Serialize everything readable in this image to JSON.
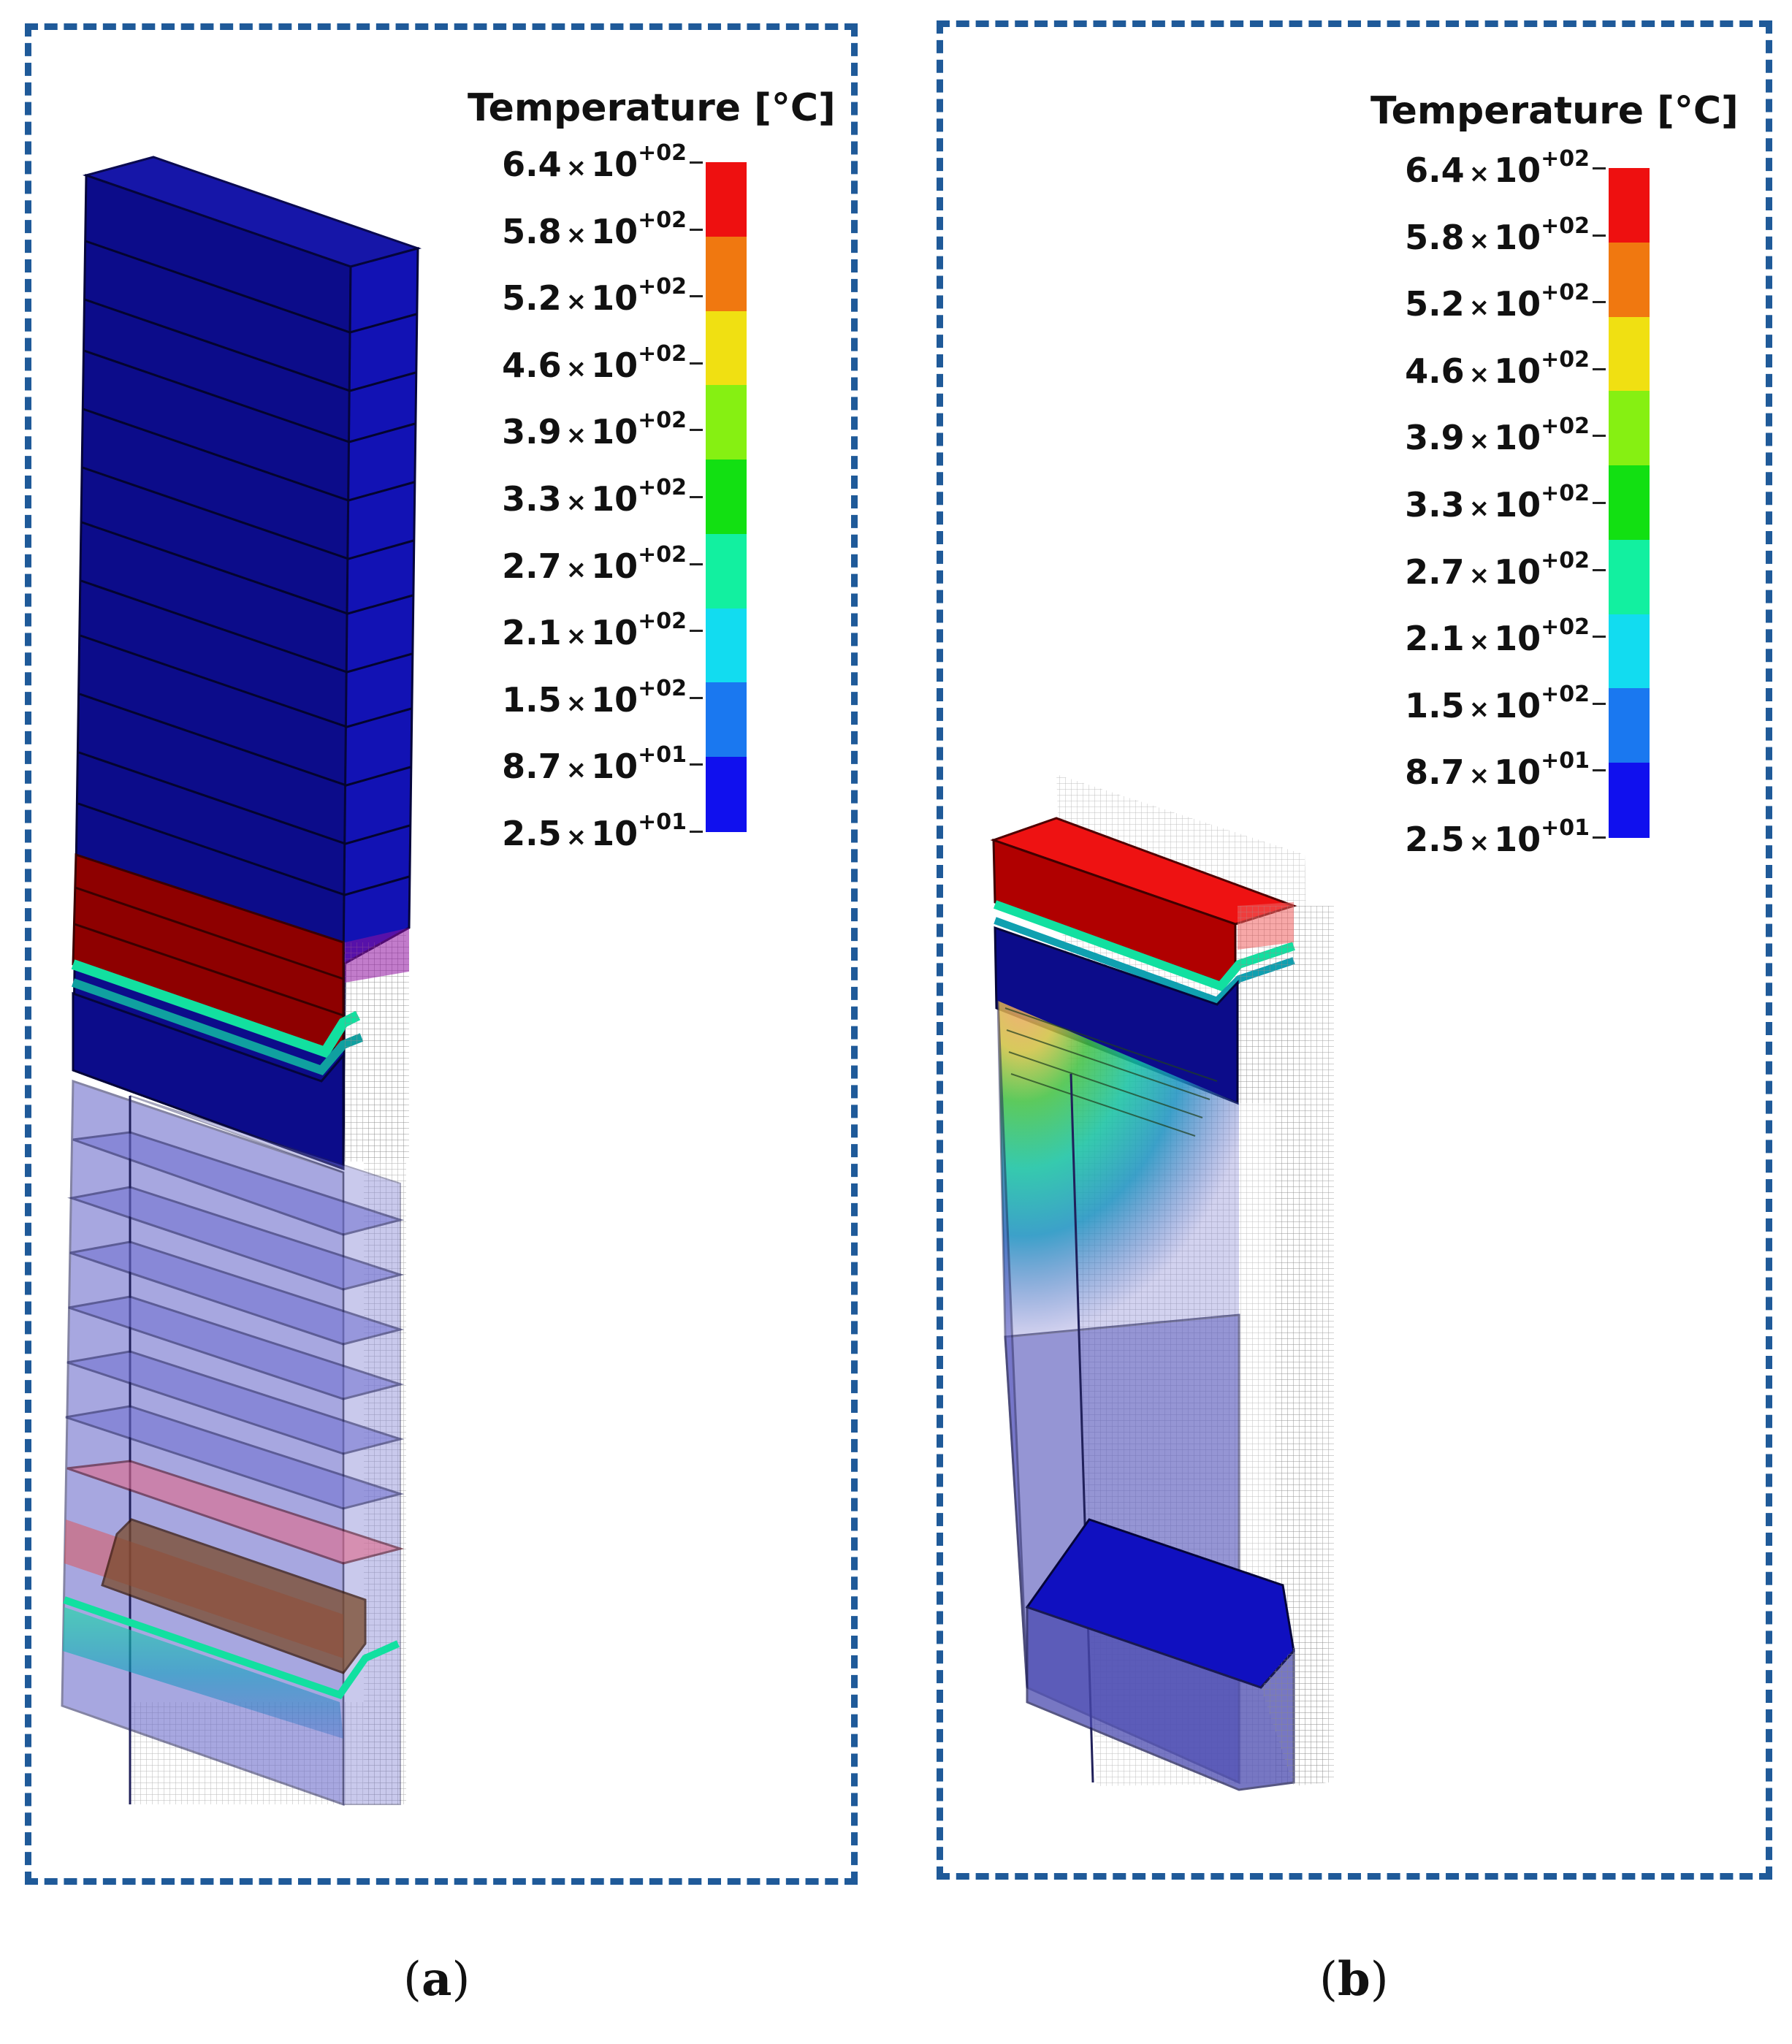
{
  "colors": {
    "frame": "#1f5a99",
    "scale": [
      "#1010ee",
      "#1a78f0",
      "#12dcf0",
      "#12f0a0",
      "#12e012",
      "#86f012",
      "#f0e012",
      "#f07810",
      "#ee1010"
    ]
  },
  "legend": {
    "title": "Temperature [°C]",
    "ticks": [
      {
        "mantissa": "6.4",
        "times": "×",
        "base": "10",
        "exp": "+02"
      },
      {
        "mantissa": "5.8",
        "times": "×",
        "base": "10",
        "exp": "+02"
      },
      {
        "mantissa": "5.2",
        "times": "×",
        "base": "10",
        "exp": "+02"
      },
      {
        "mantissa": "4.6",
        "times": "×",
        "base": "10",
        "exp": "+02"
      },
      {
        "mantissa": "3.9",
        "times": "×",
        "base": "10",
        "exp": "+02"
      },
      {
        "mantissa": "3.3",
        "times": "×",
        "base": "10",
        "exp": "+02"
      },
      {
        "mantissa": "2.7",
        "times": "×",
        "base": "10",
        "exp": "+02"
      },
      {
        "mantissa": "2.1",
        "times": "×",
        "base": "10",
        "exp": "+02"
      },
      {
        "mantissa": "1.5",
        "times": "×",
        "base": "10",
        "exp": "+02"
      },
      {
        "mantissa": "8.7",
        "times": "×",
        "base": "10",
        "exp": "+01"
      },
      {
        "mantissa": "2.5",
        "times": "×",
        "base": "10",
        "exp": "+01"
      }
    ]
  },
  "panels": {
    "a": {
      "caption_letter": "a"
    },
    "b": {
      "caption_letter": "b"
    }
  }
}
